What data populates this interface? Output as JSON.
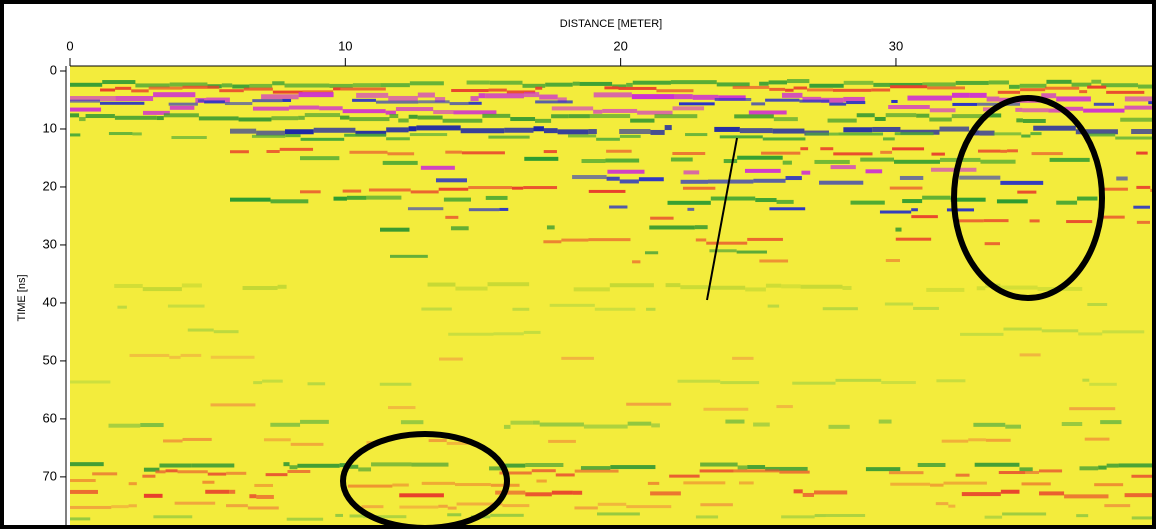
{
  "chart_data": {
    "type": "radargram",
    "x_label": "DISTANCE [METER]",
    "y_label": "TIME [ns]",
    "xlim": [
      0,
      39.3
    ],
    "xticks": [
      0,
      10,
      20,
      30
    ],
    "ylim": [
      0,
      78.3
    ],
    "yticks": [
      0,
      10,
      20,
      30,
      40,
      50,
      60,
      70
    ]
  }
}
